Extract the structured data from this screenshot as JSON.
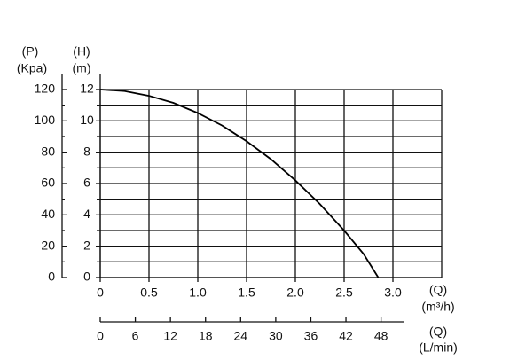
{
  "chart_data": {
    "type": "line",
    "p_axis_label": [
      "(P)",
      "(Kpa)"
    ],
    "h_axis_label": [
      "(H)",
      "(m)"
    ],
    "x_label": [
      "(Q)",
      "(m³/h)"
    ],
    "x2_label": [
      "(Q)",
      "(L/min)"
    ],
    "x": [
      0,
      0.25,
      0.5,
      0.75,
      1.0,
      1.25,
      1.5,
      1.75,
      2.0,
      2.25,
      2.5,
      2.7,
      2.85
    ],
    "series": [
      {
        "color": "#000000",
        "values": [
          12,
          11.9,
          11.6,
          11.15,
          10.5,
          9.7,
          8.7,
          7.55,
          6.2,
          4.7,
          3.0,
          1.5,
          0
        ]
      }
    ],
    "xlim": [
      0,
      3.5
    ],
    "xticks": [
      0,
      0.5,
      {
        "value": 1,
        "label": "1.0"
      },
      1.5,
      {
        "value": 2,
        "label": "2.0"
      },
      2.5,
      {
        "value": 3,
        "label": "3.0"
      }
    ],
    "ylim": [
      0,
      12
    ],
    "yticks": [
      0,
      2,
      4,
      6,
      8,
      10,
      12
    ],
    "yminor": [
      1,
      3,
      5,
      7,
      9,
      11
    ],
    "y2lim": [
      0,
      120
    ],
    "y2ticks": [
      0,
      20,
      40,
      60,
      80,
      100,
      120
    ],
    "y2minor": [
      10,
      30,
      50,
      70,
      90,
      110
    ],
    "x2lim": [
      0,
      52
    ],
    "x2ticks": [
      0,
      6,
      12,
      18,
      24,
      30,
      36,
      42,
      48
    ],
    "grid": true
  }
}
